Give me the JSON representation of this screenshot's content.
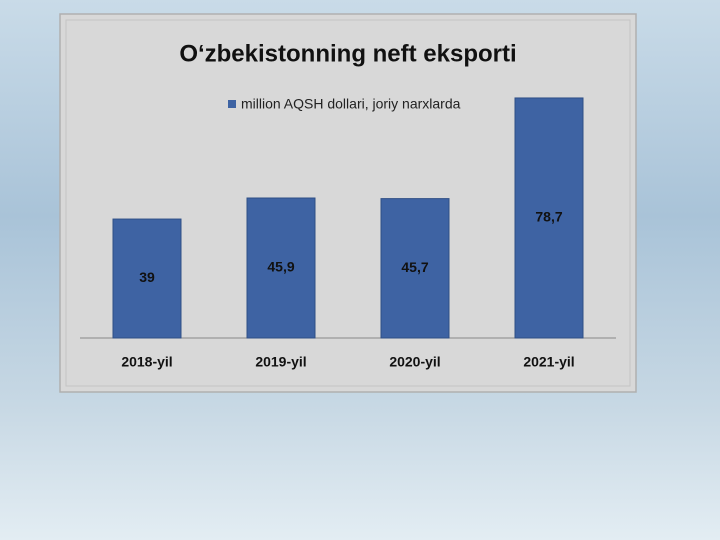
{
  "chart_data": {
    "type": "bar",
    "title": "O‘zbekistonning neft eksporti",
    "categories": [
      "2018-yil",
      "2019-yil",
      "2020-yil",
      "2021-yil"
    ],
    "series": [
      {
        "name": "million AQSH dollari, joriy narxlarda",
        "color": "#3e63a3",
        "values": [
          39,
          45.9,
          45.7,
          78.7
        ],
        "value_labels": [
          "39",
          "45,9",
          "45,7",
          "78,7"
        ]
      }
    ],
    "ylim": [
      0,
      80
    ]
  }
}
